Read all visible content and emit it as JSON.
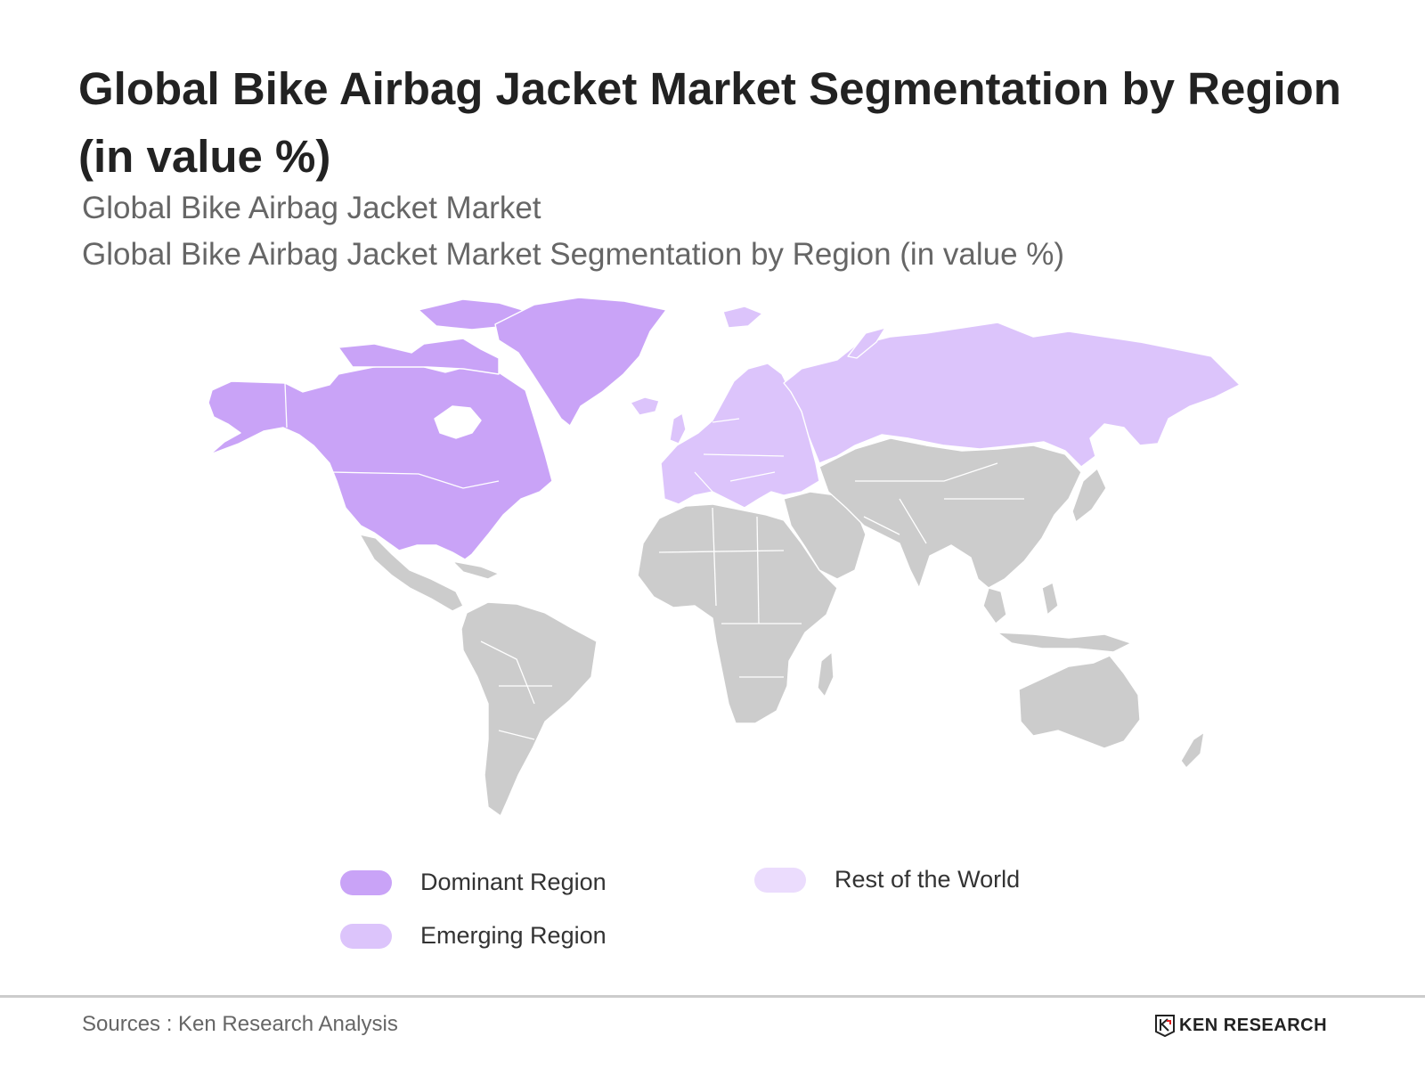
{
  "title": "Global Bike Airbag Jacket Market Segmentation by Region (in value %)",
  "subtitle_1": "Global Bike Airbag Jacket Market",
  "subtitle_2": "Global Bike Airbag Jacket Market Segmentation by Region (in value %)",
  "map": {
    "regions": [
      {
        "name": "North America",
        "category": "dominant"
      },
      {
        "name": "Greenland",
        "category": "dominant"
      },
      {
        "name": "Europe",
        "category": "emerging"
      },
      {
        "name": "Russia",
        "category": "emerging"
      },
      {
        "name": "Latin America",
        "category": "other"
      },
      {
        "name": "Africa",
        "category": "other"
      },
      {
        "name": "Middle East",
        "category": "other"
      },
      {
        "name": "Asia",
        "category": "other"
      },
      {
        "name": "Oceania",
        "category": "other"
      }
    ],
    "colors": {
      "dominant": "#c9a3f7",
      "emerging": "#dcc4fb",
      "rest": "#ebdcfd",
      "other": "#cccccc"
    }
  },
  "legend": {
    "dominant": "Dominant Region",
    "emerging": "Emerging Region",
    "rest": "Rest of the World"
  },
  "source": "Sources : Ken Research Analysis",
  "logo_text": "KEN RESEARCH"
}
